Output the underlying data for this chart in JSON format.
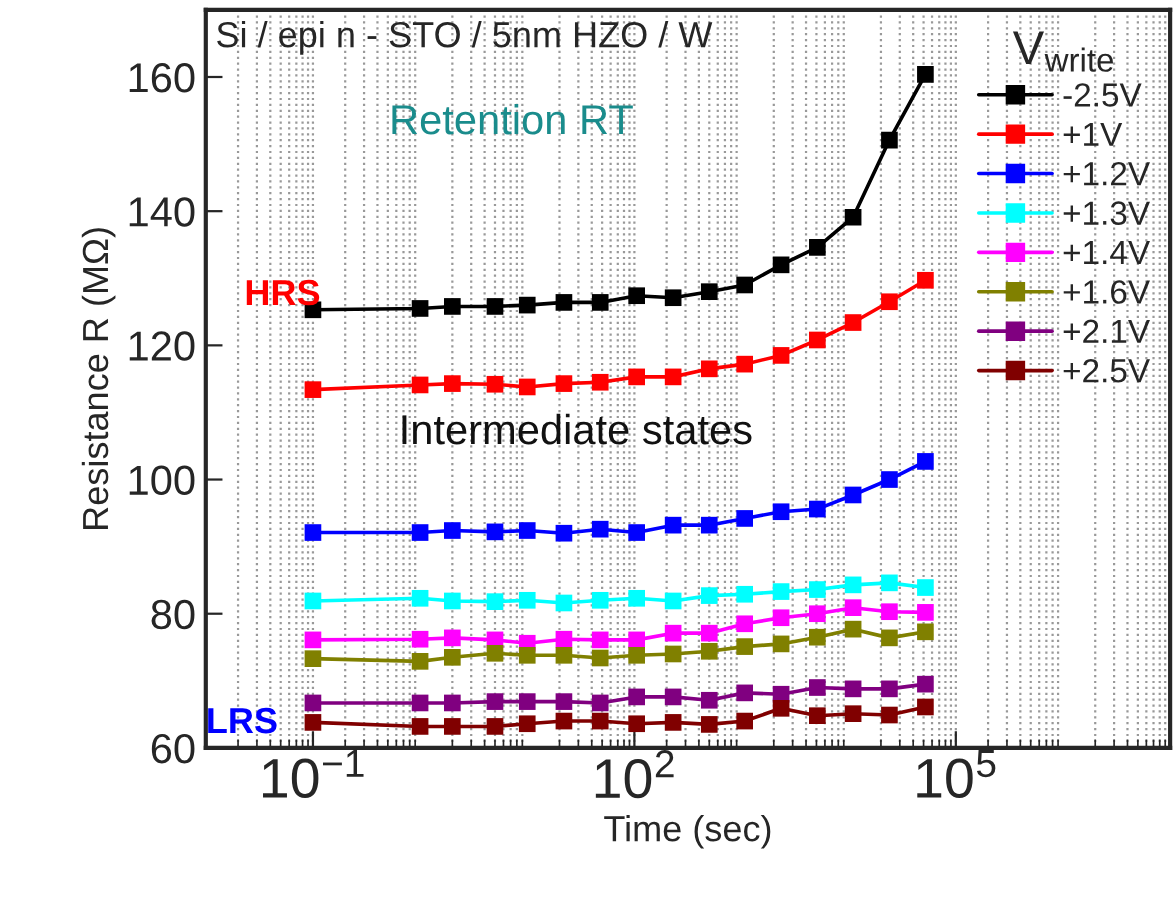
{
  "chart_data": {
    "type": "line",
    "title": "Si / epi n - STO / 5nm HZO / W",
    "xlabel": "Time (sec)",
    "ylabel": "Resistance R (MΩ)",
    "legend_title": "V$_{write}$",
    "annotations": [
      "Retention RT",
      "HRS",
      "Intermediate states",
      "LRS"
    ],
    "x": [
      0.1,
      1,
      2,
      5,
      10,
      22,
      48,
      105,
      230,
      500,
      1070,
      2340,
      5100,
      11000,
      24000,
      52000
    ],
    "series": [
      {
        "name": "-2.5V",
        "color": "#000000",
        "values": [
          125.3,
          125.5,
          125.8,
          125.8,
          126.0,
          126.4,
          126.4,
          127.4,
          127.1,
          128.0,
          129.0,
          132.0,
          134.6,
          139.1,
          150.6,
          160.4
        ]
      },
      {
        "name": "+1V",
        "color": "#ff0000",
        "values": [
          113.4,
          114.1,
          114.3,
          114.2,
          113.8,
          114.3,
          114.5,
          115.3,
          115.3,
          116.5,
          117.2,
          118.5,
          120.8,
          123.4,
          126.5,
          129.7
        ]
      },
      {
        "name": "+1.2V",
        "color": "#0000ff",
        "values": [
          92.1,
          92.1,
          92.4,
          92.2,
          92.4,
          92.0,
          92.6,
          92.1,
          93.2,
          93.2,
          94.2,
          95.2,
          95.6,
          97.7,
          100.0,
          102.7
        ]
      },
      {
        "name": "+1.3V",
        "color": "#00ffff",
        "values": [
          81.9,
          82.3,
          81.9,
          81.8,
          82.0,
          81.6,
          82.0,
          82.3,
          81.9,
          82.7,
          82.9,
          83.3,
          83.6,
          84.3,
          84.6,
          83.9
        ]
      },
      {
        "name": "+1.4V",
        "color": "#ff00ff",
        "values": [
          76.1,
          76.2,
          76.4,
          76.1,
          75.6,
          76.2,
          76.1,
          76.1,
          77.1,
          77.1,
          78.5,
          79.4,
          80.0,
          80.9,
          80.3,
          80.2
        ]
      },
      {
        "name": "+1.6V",
        "color": "#808000",
        "values": [
          73.3,
          72.9,
          73.5,
          74.1,
          73.8,
          73.8,
          73.4,
          73.8,
          74.0,
          74.4,
          75.1,
          75.5,
          76.5,
          77.7,
          76.4,
          77.3
        ]
      },
      {
        "name": "+2.1V",
        "color": "#800080",
        "values": [
          66.7,
          66.7,
          66.7,
          66.9,
          66.9,
          66.9,
          66.7,
          67.6,
          67.6,
          67.1,
          68.2,
          68.0,
          69.0,
          68.8,
          68.8,
          69.5
        ]
      },
      {
        "name": "+2.5V",
        "color": "#800000",
        "values": [
          63.8,
          63.2,
          63.2,
          63.2,
          63.6,
          64.0,
          64.0,
          63.6,
          63.8,
          63.5,
          64.0,
          65.9,
          64.8,
          65.1,
          64.9,
          66.1
        ]
      }
    ],
    "log": "x",
    "xlim": [
      0.01,
      10000000
    ],
    "xticks": [
      {
        "value": 0.1,
        "label": "10$^{−1}$"
      },
      {
        "value": 100,
        "label": "10$^{2}$"
      },
      {
        "value": 100000,
        "label": "10$^{5}$"
      }
    ],
    "ylim": [
      60,
      170
    ],
    "yticks": [
      60,
      80,
      100,
      120,
      140,
      160
    ],
    "grid": "x",
    "legend": "top right",
    "marker": "square",
    "line_style": "solid"
  }
}
